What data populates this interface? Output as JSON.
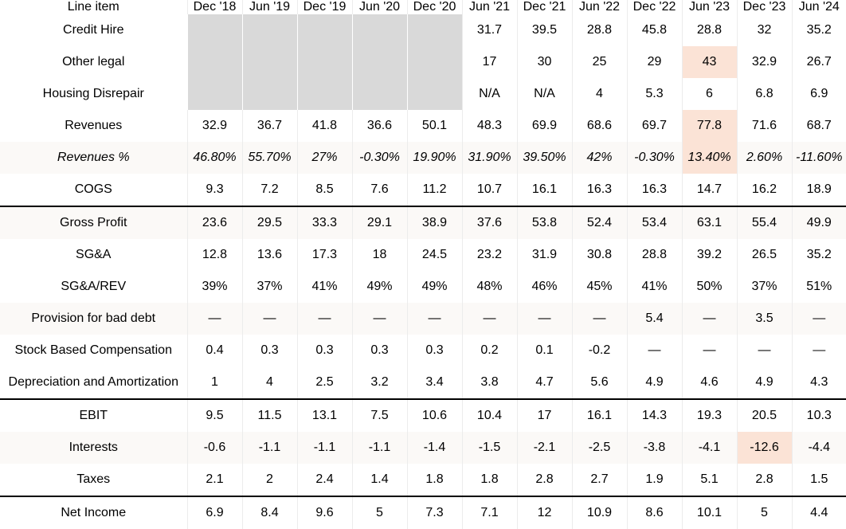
{
  "table": {
    "columns": [
      "Line item",
      "Dec '18",
      "Jun '19",
      "Dec '19",
      "Jun '20",
      "Dec '20",
      "Jun '21",
      "Dec '21",
      "Jun '22",
      "Dec '22",
      "Jun '23",
      "Dec '23",
      "Jun '24"
    ],
    "rows": [
      {
        "label": "Credit Hire",
        "cells": [
          "",
          "",
          "",
          "",
          "",
          "31.7",
          "39.5",
          "28.8",
          "45.8",
          "28.8",
          "32",
          "35.2"
        ],
        "greyed": [
          0,
          1,
          2,
          3,
          4
        ],
        "highlighted": [],
        "alt": false,
        "italic": false,
        "sep": false
      },
      {
        "label": "Other legal",
        "cells": [
          "",
          "",
          "",
          "",
          "",
          "17",
          "30",
          "25",
          "29",
          "43",
          "32.9",
          "26.7"
        ],
        "greyed": [
          0,
          1,
          2,
          3,
          4
        ],
        "highlighted": [
          9
        ],
        "alt": false,
        "italic": false,
        "sep": false
      },
      {
        "label": "Housing Disrepair",
        "cells": [
          "",
          "",
          "",
          "",
          "",
          "N/A",
          "N/A",
          "4",
          "5.3",
          "6",
          "6.8",
          "6.9"
        ],
        "greyed": [
          0,
          1,
          2,
          3,
          4
        ],
        "highlighted": [],
        "alt": false,
        "italic": false,
        "sep": false
      },
      {
        "label": "Revenues",
        "cells": [
          "32.9",
          "36.7",
          "41.8",
          "36.6",
          "50.1",
          "48.3",
          "69.9",
          "68.6",
          "69.7",
          "77.8",
          "71.6",
          "68.7"
        ],
        "greyed": [],
        "highlighted": [
          9
        ],
        "alt": false,
        "italic": false,
        "sep": false
      },
      {
        "label": "Revenues %",
        "cells": [
          "46.80%",
          "55.70%",
          "27%",
          "-0.30%",
          "19.90%",
          "31.90%",
          "39.50%",
          "42%",
          "-0.30%",
          "13.40%",
          "2.60%",
          "-11.60%"
        ],
        "greyed": [],
        "highlighted": [
          9
        ],
        "alt": true,
        "italic": true,
        "sep": false
      },
      {
        "label": "COGS",
        "cells": [
          "9.3",
          "7.2",
          "8.5",
          "7.6",
          "11.2",
          "10.7",
          "16.1",
          "16.3",
          "16.3",
          "14.7",
          "16.2",
          "18.9"
        ],
        "greyed": [],
        "highlighted": [],
        "alt": false,
        "italic": false,
        "sep": false
      },
      {
        "label": "Gross Profit",
        "cells": [
          "23.6",
          "29.5",
          "33.3",
          "29.1",
          "38.9",
          "37.6",
          "53.8",
          "52.4",
          "53.4",
          "63.1",
          "55.4",
          "49.9"
        ],
        "greyed": [],
        "highlighted": [],
        "alt": true,
        "italic": false,
        "sep": true
      },
      {
        "label": "SG&A",
        "cells": [
          "12.8",
          "13.6",
          "17.3",
          "18",
          "24.5",
          "23.2",
          "31.9",
          "30.8",
          "28.8",
          "39.2",
          "26.5",
          "35.2"
        ],
        "greyed": [],
        "highlighted": [],
        "alt": false,
        "italic": false,
        "sep": false
      },
      {
        "label": "SG&A/REV",
        "cells": [
          "39%",
          "37%",
          "41%",
          "49%",
          "49%",
          "48%",
          "46%",
          "45%",
          "41%",
          "50%",
          "37%",
          "51%"
        ],
        "greyed": [],
        "highlighted": [],
        "alt": false,
        "italic": false,
        "sep": false
      },
      {
        "label": "Provision for bad debt",
        "cells": [
          "—",
          "—",
          "—",
          "—",
          "—",
          "—",
          "—",
          "—",
          "5.4",
          "—",
          "3.5",
          "—"
        ],
        "greyed": [],
        "highlighted": [],
        "alt": true,
        "italic": false,
        "sep": false
      },
      {
        "label": "Stock Based Compensation",
        "cells": [
          "0.4",
          "0.3",
          "0.3",
          "0.3",
          "0.3",
          "0.2",
          "0.1",
          "-0.2",
          "—",
          "—",
          "—",
          "—"
        ],
        "greyed": [],
        "highlighted": [],
        "alt": false,
        "italic": false,
        "sep": false
      },
      {
        "label": "Depreciation and Amortization",
        "cells": [
          "1",
          "4",
          "2.5",
          "3.2",
          "3.4",
          "3.8",
          "4.7",
          "5.6",
          "4.9",
          "4.6",
          "4.9",
          "4.3"
        ],
        "greyed": [],
        "highlighted": [],
        "alt": false,
        "italic": false,
        "sep": false
      },
      {
        "label": "EBIT",
        "cells": [
          "9.5",
          "11.5",
          "13.1",
          "7.5",
          "10.6",
          "10.4",
          "17",
          "16.1",
          "14.3",
          "19.3",
          "20.5",
          "10.3"
        ],
        "greyed": [],
        "highlighted": [],
        "alt": false,
        "italic": false,
        "sep": true
      },
      {
        "label": "Interests",
        "cells": [
          "-0.6",
          "-1.1",
          "-1.1",
          "-1.1",
          "-1.4",
          "-1.5",
          "-2.1",
          "-2.5",
          "-3.8",
          "-4.1",
          "-12.6",
          "-4.4"
        ],
        "greyed": [],
        "highlighted": [
          10
        ],
        "alt": true,
        "italic": false,
        "sep": false
      },
      {
        "label": "Taxes",
        "cells": [
          "2.1",
          "2",
          "2.4",
          "1.4",
          "1.8",
          "1.8",
          "2.8",
          "2.7",
          "1.9",
          "5.1",
          "2.8",
          "1.5"
        ],
        "greyed": [],
        "highlighted": [],
        "alt": false,
        "italic": false,
        "sep": false
      },
      {
        "label": "Net Income",
        "cells": [
          "6.9",
          "8.4",
          "9.6",
          "5",
          "7.3",
          "7.1",
          "12",
          "10.9",
          "8.6",
          "10.1",
          "5",
          "4.4"
        ],
        "greyed": [],
        "highlighted": [],
        "alt": false,
        "italic": false,
        "sep": true
      }
    ]
  },
  "colors": {
    "highlight": "#fbe3d6",
    "greyed": "#d9d9d9",
    "alt_row": "#fbf9f7",
    "separator": "#000000"
  }
}
